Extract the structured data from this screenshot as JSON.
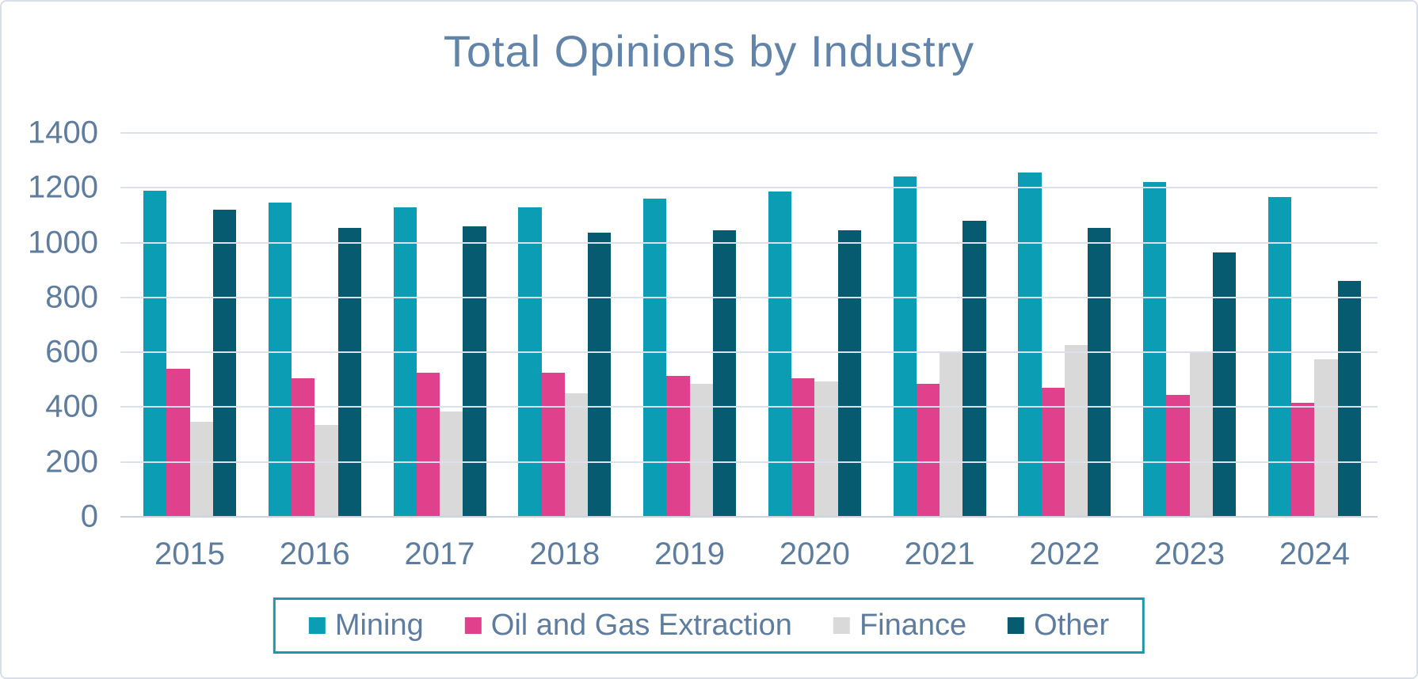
{
  "title": "Total Opinions by Industry",
  "chart_data": {
    "type": "bar",
    "title": "Total Opinions by Industry",
    "categories": [
      "2015",
      "2016",
      "2017",
      "2018",
      "2019",
      "2020",
      "2021",
      "2022",
      "2023",
      "2024"
    ],
    "series": [
      {
        "name": "Mining",
        "color": "#0a9db3",
        "values": [
          1190,
          1145,
          1130,
          1130,
          1160,
          1185,
          1240,
          1255,
          1220,
          1165
        ]
      },
      {
        "name": "Oil and Gas Extraction",
        "color": "#e0418d",
        "values": [
          540,
          505,
          525,
          525,
          515,
          505,
          485,
          470,
          445,
          415
        ]
      },
      {
        "name": "Finance",
        "color": "#d9d9d9",
        "values": [
          345,
          335,
          385,
          450,
          485,
          495,
          600,
          625,
          600,
          575
        ]
      },
      {
        "name": "Other",
        "color": "#065b70",
        "values": [
          1120,
          1055,
          1060,
          1035,
          1045,
          1045,
          1080,
          1055,
          965,
          860
        ]
      }
    ],
    "xlabel": "",
    "ylabel": "",
    "ylim": [
      0,
      1400
    ],
    "ytick_step": 200,
    "yticks": [
      "1400",
      "1200",
      "1000",
      "800",
      "600",
      "400",
      "200",
      "0"
    ],
    "grid": true,
    "legend_position": "bottom",
    "colors": {
      "title_text": "#6384a9",
      "axis_text": "#5e7d9e",
      "gridline": "#dbe0ea",
      "legend_border": "#1f96aa",
      "background": "#ffffff",
      "outer_border": "#d9dee8"
    }
  }
}
